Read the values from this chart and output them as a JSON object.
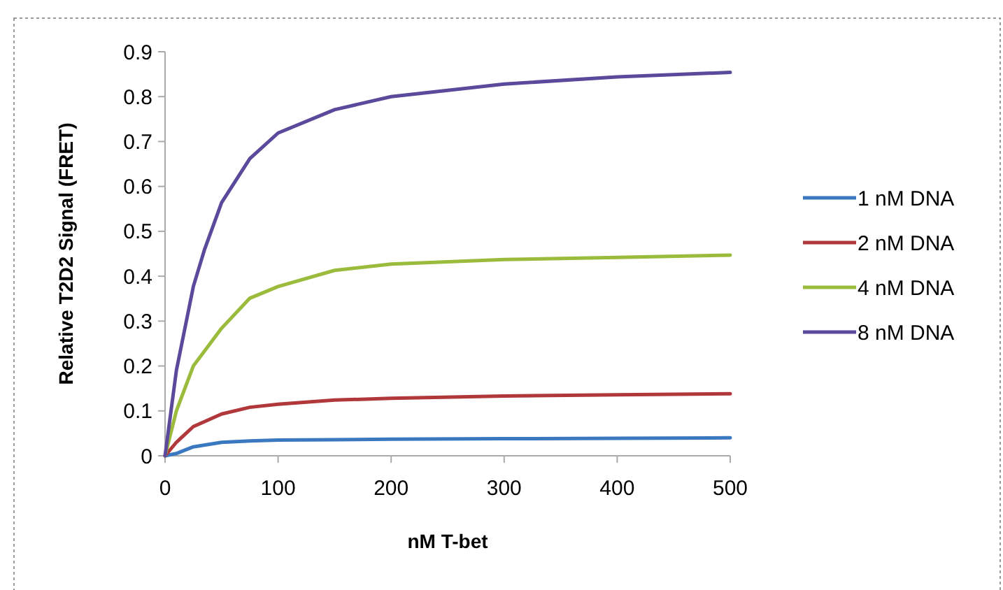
{
  "chart_data": {
    "type": "line",
    "xlabel": "nM T-bet",
    "ylabel": "Relative T2D2 Signal (FRET)",
    "xlim": [
      0,
      500
    ],
    "xticks": [
      0,
      100,
      200,
      300,
      400,
      500
    ],
    "ylim": [
      0,
      0.9
    ],
    "yticks": [
      0,
      0.1,
      0.2,
      0.3,
      0.4,
      0.5,
      0.6,
      0.7,
      0.8,
      0.9
    ],
    "grid": false,
    "legend": "right",
    "marker": "none",
    "line_style": "solid",
    "series": [
      {
        "name": "1 nM DNA",
        "color": "#3a78c0",
        "x": [
          0,
          10,
          25,
          50,
          75,
          100,
          150,
          200,
          300,
          400,
          500
        ],
        "values": [
          0,
          0.005,
          0.02,
          0.03,
          0.033,
          0.035,
          0.036,
          0.037,
          0.038,
          0.039,
          0.04
        ]
      },
      {
        "name": "2 nM DNA",
        "color": "#b0383a",
        "x": [
          0,
          10,
          25,
          50,
          75,
          100,
          150,
          200,
          300,
          400,
          500
        ],
        "values": [
          0,
          0.03,
          0.065,
          0.093,
          0.108,
          0.115,
          0.124,
          0.128,
          0.133,
          0.136,
          0.138
        ]
      },
      {
        "name": "4 nM DNA",
        "color": "#9bbb3c",
        "x": [
          0,
          10,
          25,
          50,
          75,
          100,
          150,
          200,
          300,
          400,
          500
        ],
        "values": [
          0,
          0.1,
          0.2,
          0.284,
          0.351,
          0.377,
          0.413,
          0.427,
          0.437,
          0.442,
          0.447
        ]
      },
      {
        "name": "8 nM DNA",
        "color": "#5b4a9c",
        "x": [
          0,
          10,
          25,
          35,
          50,
          75,
          100,
          150,
          200,
          300,
          400,
          500
        ],
        "values": [
          0,
          0.19,
          0.377,
          0.46,
          0.564,
          0.662,
          0.719,
          0.771,
          0.8,
          0.828,
          0.844,
          0.854
        ]
      }
    ]
  }
}
